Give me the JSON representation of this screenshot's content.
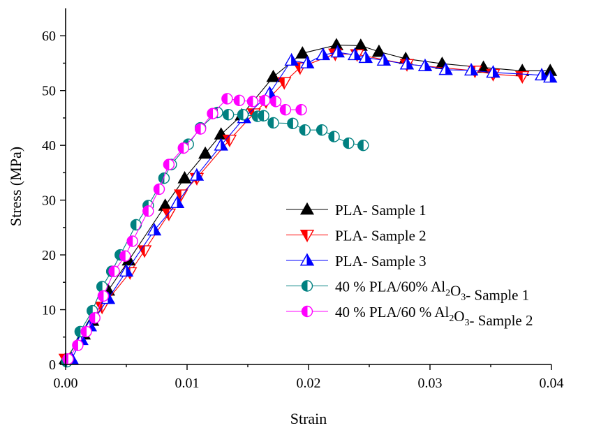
{
  "chart_data": {
    "type": "line",
    "title": "",
    "xlabel": "Strain",
    "ylabel": "Stress (MPa)",
    "xlim": [
      0.0,
      0.04
    ],
    "ylim": [
      0,
      65
    ],
    "xticks": [
      "0.00",
      "0.01",
      "0.02",
      "0.03",
      "0.04"
    ],
    "yticks": [
      "0",
      "10",
      "20",
      "30",
      "40",
      "50",
      "60"
    ],
    "xtick_values": [
      0.0,
      0.01,
      0.02,
      0.03,
      0.04
    ],
    "ytick_values": [
      0,
      10,
      20,
      30,
      40,
      50,
      60
    ],
    "grid": false,
    "legend_position": "center-right",
    "series": [
      {
        "name": "PLA- Sample 1",
        "label_parts": [
          {
            "t": "PLA- Sample 1"
          }
        ],
        "color": "#000000",
        "marker": "triangle-up-filled",
        "x": [
          0.0,
          0.0015,
          0.0022,
          0.0035,
          0.0052,
          0.0082,
          0.0098,
          0.0115,
          0.0128,
          0.0145,
          0.0171,
          0.0195,
          0.0223,
          0.0243,
          0.0258,
          0.028,
          0.031,
          0.0344,
          0.0376,
          0.0399
        ],
        "y": [
          1.0,
          5.5,
          8.0,
          13.5,
          19.0,
          29.0,
          34.0,
          38.5,
          42.0,
          45.5,
          52.5,
          56.8,
          58.3,
          58.2,
          57.1,
          55.8,
          54.9,
          54.2,
          53.6,
          53.6
        ]
      },
      {
        "name": "PLA- Sample 2",
        "label_parts": [
          {
            "t": "PLA- Sample 2"
          }
        ],
        "color": "#ff0000",
        "marker": "triangle-down-open",
        "x": [
          0.0,
          0.003,
          0.0053,
          0.0065,
          0.0085,
          0.0095,
          0.0108,
          0.0135,
          0.0155,
          0.0165,
          0.018,
          0.0193,
          0.0222,
          0.024,
          0.0281,
          0.0337,
          0.0352,
          0.0376
        ],
        "y": [
          1.0,
          10.5,
          16.8,
          20.8,
          27.5,
          31.0,
          34.0,
          41.0,
          45.8,
          48.0,
          51.5,
          54.2,
          56.7,
          56.6,
          54.8,
          53.6,
          53.0,
          52.6
        ]
      },
      {
        "name": "PLA- Sample 3",
        "label_parts": [
          {
            "t": "PLA- Sample 3"
          }
        ],
        "color": "#0000ff",
        "marker": "triangle-up-open",
        "x": [
          0.0005,
          0.0013,
          0.002,
          0.0035,
          0.005,
          0.0073,
          0.0092,
          0.0108,
          0.0128,
          0.0147,
          0.0168,
          0.0186,
          0.0199,
          0.0212,
          0.0224,
          0.0238,
          0.0247,
          0.0262,
          0.0281,
          0.0296,
          0.0313,
          0.0334,
          0.0352,
          0.0392,
          0.0399
        ],
        "y": [
          1.0,
          4.5,
          7.0,
          12.0,
          17.0,
          24.5,
          29.5,
          34.5,
          40.0,
          45.0,
          49.5,
          55.5,
          55.0,
          56.5,
          57.0,
          56.5,
          56.0,
          55.5,
          54.8,
          54.5,
          53.8,
          53.7,
          53.3,
          52.8,
          52.4
        ]
      },
      {
        "name": "40 % PLA/60% Al2O3- Sample 1",
        "label_parts": [
          {
            "t": "40 % PLA/60% Al"
          },
          {
            "t": "2",
            "sub": true
          },
          {
            "t": "O"
          },
          {
            "t": "3",
            "sub": true
          },
          {
            "t": "- Sample 1"
          }
        ],
        "color": "#008080",
        "marker": "circle-half",
        "x": [
          0.0001,
          0.0012,
          0.0022,
          0.003,
          0.0038,
          0.0045,
          0.0058,
          0.0068,
          0.0081,
          0.0087,
          0.0101,
          0.0111,
          0.0125,
          0.0134,
          0.0146,
          0.0158,
          0.0163,
          0.0171,
          0.0187,
          0.0197,
          0.0211,
          0.0221,
          0.0233,
          0.0245
        ],
        "y": [
          0.5,
          6.0,
          9.8,
          14.2,
          17.0,
          20.0,
          25.5,
          29.0,
          34.0,
          36.5,
          40.2,
          43.2,
          46.0,
          45.6,
          45.6,
          45.3,
          45.4,
          44.1,
          44.0,
          42.8,
          42.8,
          41.6,
          40.4,
          40.0
        ]
      },
      {
        "name": "40 % PLA/60 % Al2O3- Sample 2",
        "label_parts": [
          {
            "t": "40 % PLA/60 % Al"
          },
          {
            "t": "2",
            "sub": true
          },
          {
            "t": "O"
          },
          {
            "t": "3",
            "sub": true
          },
          {
            "t": "- Sample 2"
          }
        ],
        "color": "#ff00ff",
        "marker": "circle-half",
        "x": [
          0.0002,
          0.001,
          0.0017,
          0.0024,
          0.0031,
          0.004,
          0.0049,
          0.0055,
          0.0068,
          0.0077,
          0.0085,
          0.0097,
          0.0111,
          0.0121,
          0.0133,
          0.0143,
          0.0154,
          0.0164,
          0.0173,
          0.0181,
          0.0194
        ],
        "y": [
          1.0,
          3.5,
          6.0,
          8.5,
          12.5,
          17.0,
          19.8,
          22.5,
          28.0,
          32.0,
          36.5,
          39.5,
          43.0,
          45.8,
          48.5,
          48.2,
          48.0,
          48.2,
          48.0,
          46.5,
          46.5
        ]
      }
    ]
  }
}
